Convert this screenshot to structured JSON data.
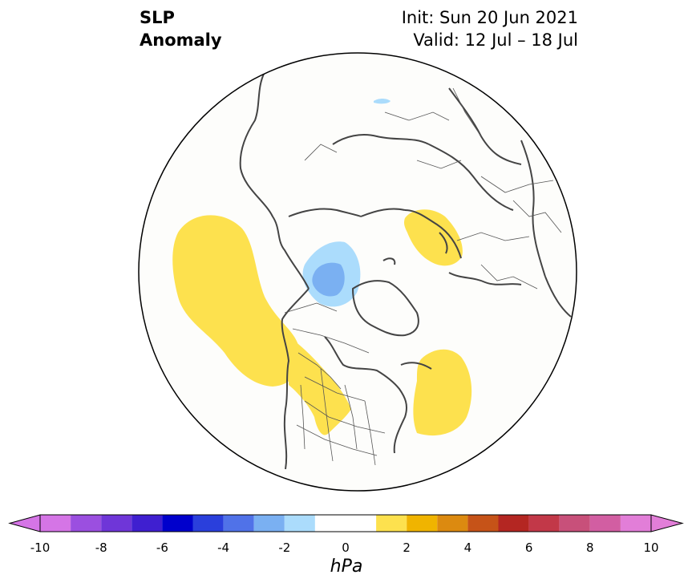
{
  "title": {
    "left_line1": "SLP",
    "left_line2": "Anomaly",
    "right_line1": "Init: Sun 20 Jun 2021",
    "right_line2": "Valid: 12 Jul – 18 Jul"
  },
  "colorbar": {
    "unit": "hPa",
    "levels": [
      -10,
      -9,
      -8,
      -7,
      -6,
      -5,
      -4,
      -3,
      -2,
      -1,
      1,
      2,
      3,
      4,
      5,
      6,
      7,
      8,
      9,
      10
    ],
    "tick_labels": [
      "-10",
      "-8",
      "-6",
      "-4",
      "-2",
      "0",
      "2",
      "4",
      "6",
      "8",
      "10"
    ],
    "colors": [
      "#d575e6",
      "#9b4fe0",
      "#6f36d8",
      "#3f1fd0",
      "#0000cc",
      "#2a3fdc",
      "#5072e8",
      "#7ab0f2",
      "#abdcfc",
      "#ffffff",
      "#fde14e",
      "#f0b400",
      "#dc8a10",
      "#c65318",
      "#b42622",
      "#c23848",
      "#c8507a",
      "#d25ea2",
      "#e27ed8"
    ],
    "extend": "both"
  },
  "map": {
    "projection": "north-polar-stereographic",
    "anomaly_regions": [
      {
        "name": "north-pacific-high",
        "sign": "positive",
        "color": "#fde14e"
      },
      {
        "name": "beaufort-sea-low",
        "sign": "negative",
        "color": "#abdcfc"
      },
      {
        "name": "beaufort-sea-low-core",
        "sign": "negative",
        "color": "#7ab0f2"
      },
      {
        "name": "scandinavia-high",
        "sign": "positive",
        "color": "#fde14e"
      },
      {
        "name": "north-atlantic-high",
        "sign": "positive",
        "color": "#fde14e"
      },
      {
        "name": "central-north-america-high",
        "sign": "positive",
        "color": "#fde14e"
      },
      {
        "name": "east-siberia-low",
        "sign": "negative",
        "color": "#abdcfc"
      }
    ]
  }
}
